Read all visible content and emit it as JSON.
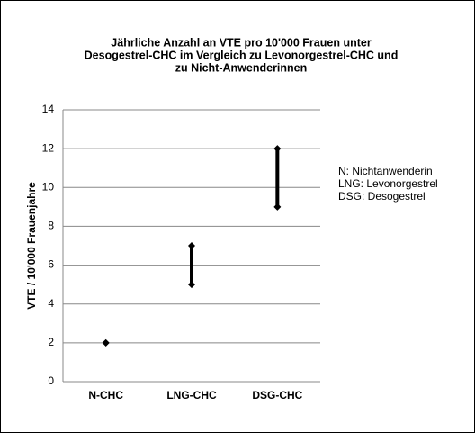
{
  "chart_data": {
    "type": "range",
    "title": [
      "Jährliche Anzahl an VTE pro 10'000 Frauen unter",
      "Desogestrel-CHC  im Vergleich zu Levonorgestrel-CHC  und",
      "zu Nicht-Anwenderinnen"
    ],
    "y_label": "VTE / 10'000 Frauenjahre",
    "categories": [
      "N-CHC",
      "LNG-CHC",
      "DSG-CHC"
    ],
    "low": [
      2,
      5,
      9
    ],
    "high": [
      2,
      7,
      12
    ],
    "color": "#000000",
    "ylim": [
      0,
      14
    ],
    "yticks": [
      0,
      2,
      4,
      6,
      8,
      10,
      12,
      14
    ],
    "grid": true,
    "notes": [
      "N: Nichtanwenderin",
      "LNG: Levonorgestrel",
      "DSG: Desogestrel"
    ]
  }
}
